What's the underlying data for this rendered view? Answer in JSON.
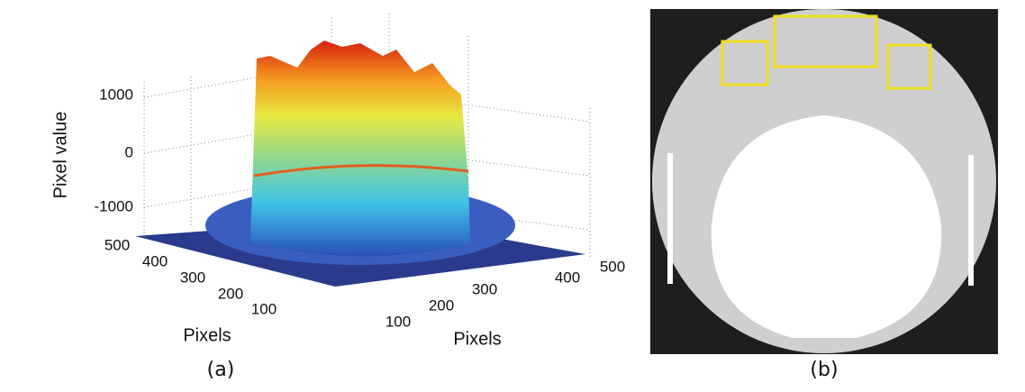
{
  "panel_a": {
    "z_axis_label": "Pixel value",
    "z_ticks": [
      1000,
      0,
      -1000
    ],
    "left_axis_ticks": [
      500,
      400,
      300,
      200,
      100
    ],
    "left_axis_label": "Pixels",
    "right_axis_ticks": [
      100,
      200,
      300,
      400,
      500
    ],
    "right_axis_label": "Pixels",
    "caption": "(a)"
  },
  "panel_b": {
    "caption": "(b)"
  }
}
